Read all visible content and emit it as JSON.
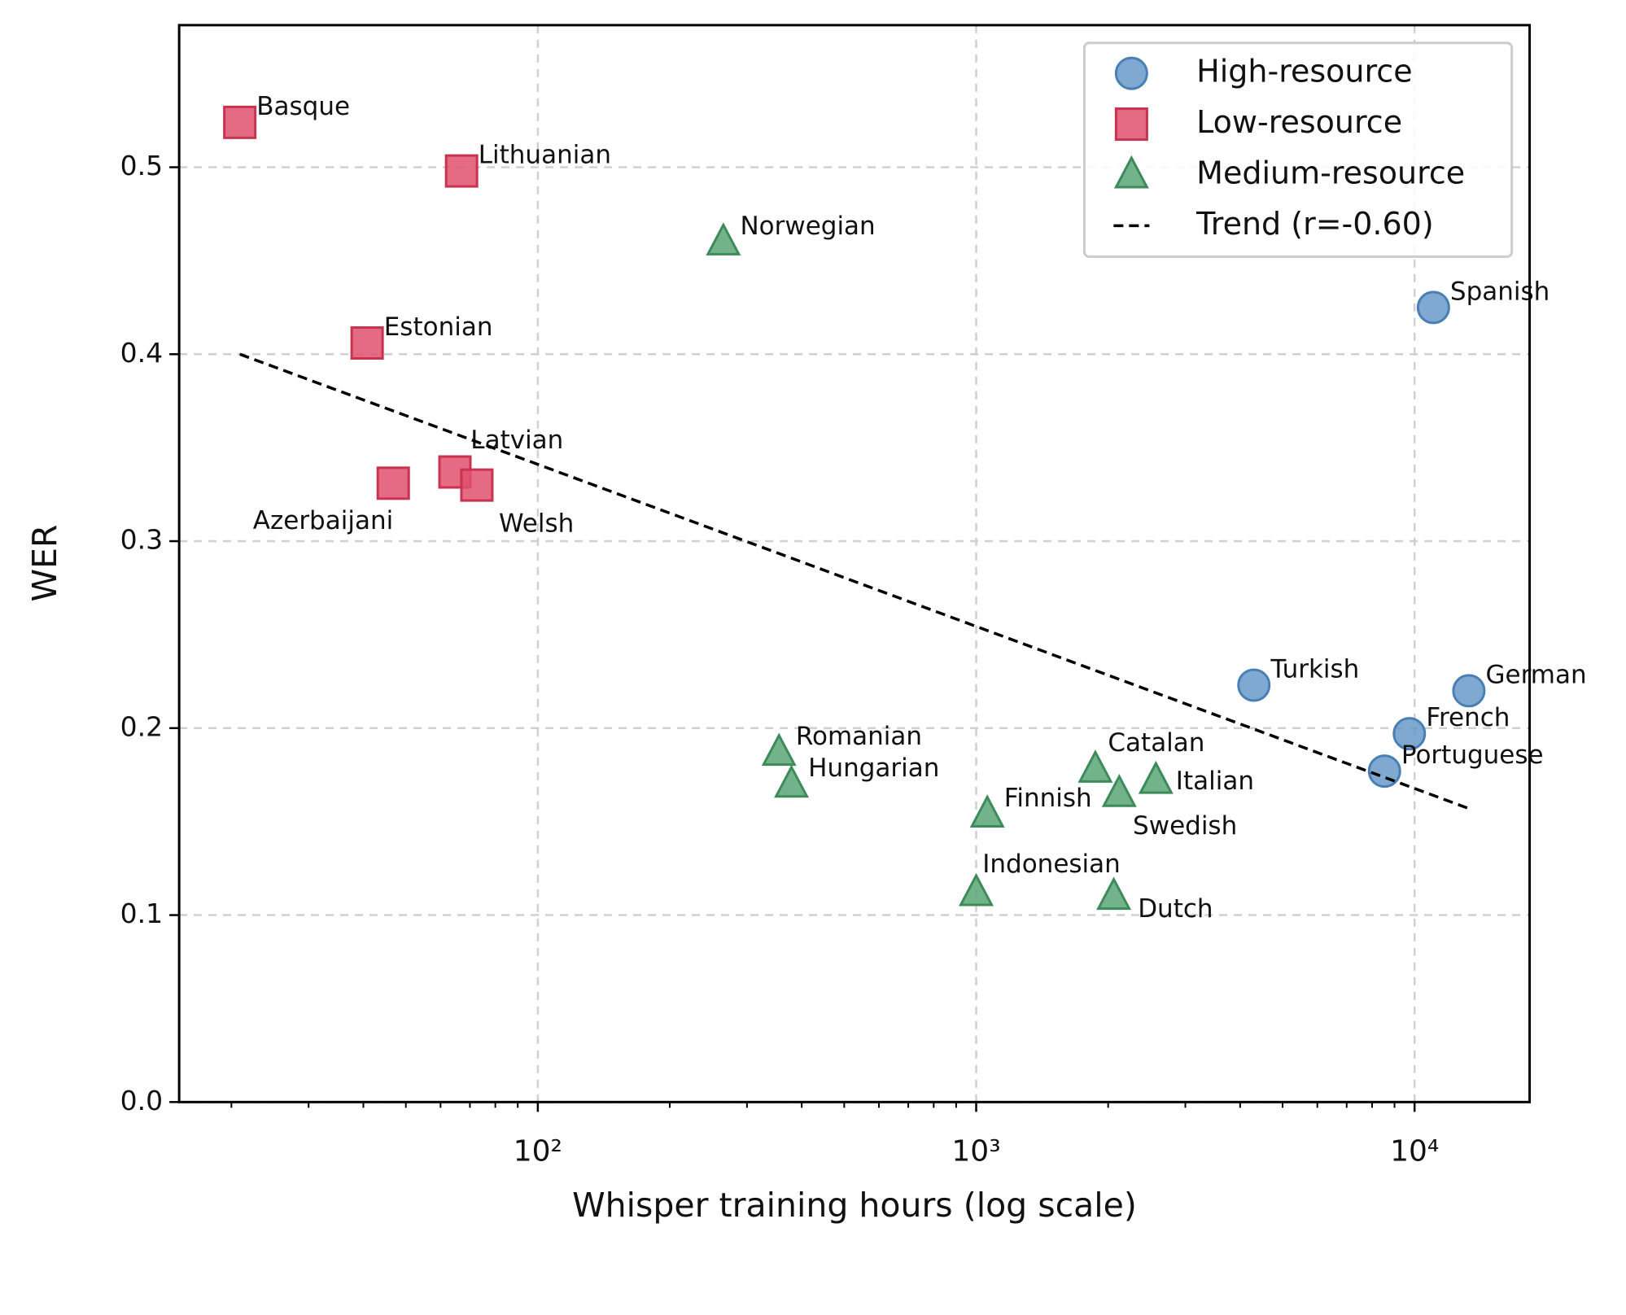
{
  "chart_data": {
    "type": "scatter",
    "xlabel": "Whisper training hours (log scale)",
    "ylabel": "WER",
    "xscale": "log",
    "xlim": [
      15.2,
      18300
    ],
    "ylim": [
      0,
      0.576
    ],
    "xticks": [
      {
        "value": 100,
        "label": "10²"
      },
      {
        "value": 1000,
        "label": "10³"
      },
      {
        "value": 10000,
        "label": "10⁴"
      }
    ],
    "xminorticks": [
      20,
      30,
      40,
      50,
      60,
      70,
      80,
      90,
      200,
      300,
      400,
      500,
      600,
      700,
      800,
      900,
      2000,
      3000,
      4000,
      5000,
      6000,
      7000,
      8000,
      9000
    ],
    "yticks": [
      {
        "value": 0,
        "label": "0.0"
      },
      0.1,
      0.2,
      0.3,
      0.4,
      0.5
    ],
    "grid": true,
    "legend": "upper right",
    "series": [
      {
        "name": "High-resource",
        "marker": "circle",
        "color": "#6a9ac9",
        "edge": "#4a7fb5",
        "labels": [
          "Spanish",
          "Turkish",
          "German",
          "French",
          "Portuguese"
        ],
        "x": [
          11040,
          4300,
          13300,
          9730,
          8540
        ],
        "y": [
          0.425,
          0.223,
          0.22,
          0.197,
          0.177
        ]
      },
      {
        "name": "Low-resource",
        "marker": "square",
        "color": "#e0506e",
        "edge": "#c8334f",
        "labels": [
          "Basque",
          "Lithuanian",
          "Estonian",
          "Azerbaijani",
          "Latvian",
          "Welsh"
        ],
        "x": [
          20.9,
          67,
          40.8,
          46.8,
          64.7,
          72.6
        ],
        "y": [
          0.524,
          0.498,
          0.406,
          0.331,
          0.337,
          0.33
        ]
      },
      {
        "name": "Medium-resource",
        "marker": "triangle",
        "color": "#5aa677",
        "edge": "#3d8a5a",
        "labels": [
          "Norwegian",
          "Romanian",
          "Hungarian",
          "Catalan",
          "Swedish",
          "Italian",
          "Finnish",
          "Indonesian",
          "Dutch"
        ],
        "x": [
          265,
          355,
          379,
          1870,
          2120,
          2570,
          1060,
          1000,
          2060
        ],
        "y": [
          0.46,
          0.187,
          0.17,
          0.178,
          0.165,
          0.172,
          0.154,
          0.112,
          0.11
        ]
      },
      {
        "name": "Trend (r=-0.60)",
        "marker": "dashed-line",
        "color": "#000000",
        "x": [
          20.9,
          13300
        ],
        "y": [
          0.4,
          0.157
        ]
      }
    ]
  }
}
